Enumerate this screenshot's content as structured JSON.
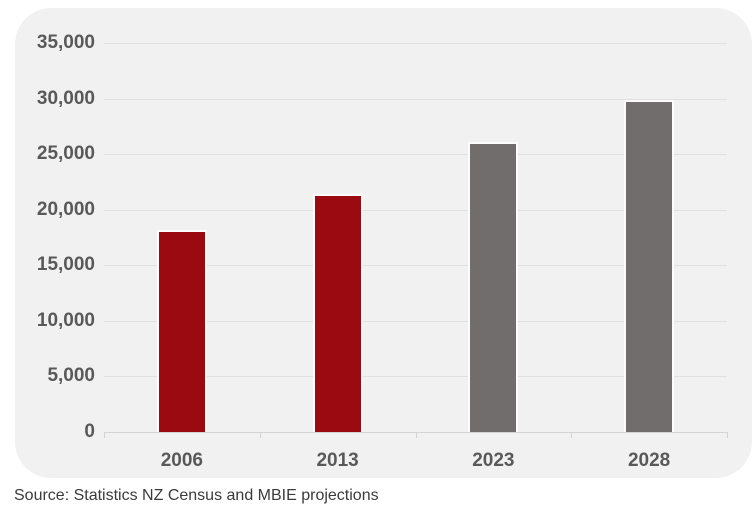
{
  "chart_data": {
    "type": "bar",
    "title": "",
    "xlabel": "",
    "ylabel": "",
    "categories": [
      "2006",
      "2013",
      "2023",
      "2028"
    ],
    "values": [
      18200,
      21400,
      26100,
      29900
    ],
    "bar_colors": [
      "#9B0A10",
      "#9B0A10",
      "#716D6D",
      "#716D6D"
    ],
    "ylim": [
      0,
      35000
    ],
    "ytick_interval": 5000,
    "ytick_labels": [
      "0",
      "5,000",
      "10,000",
      "15,000",
      "20,000",
      "25,000",
      "30,000",
      "35,000"
    ],
    "grid": true,
    "legend": false
  },
  "source_note": "Source: Statistics NZ Census and MBIE projections",
  "colors": {
    "page_background": "#FFFFFF",
    "card_background": "#F2F1F1",
    "bar_red": "#9B0A10",
    "bar_gray": "#716D6D",
    "gridline": "#E1E0E0",
    "axis_line": "#D5D4D4",
    "tick_label": "#595959",
    "source_text": "#3B3B3C",
    "bar_outline": "#FCFCFC"
  }
}
